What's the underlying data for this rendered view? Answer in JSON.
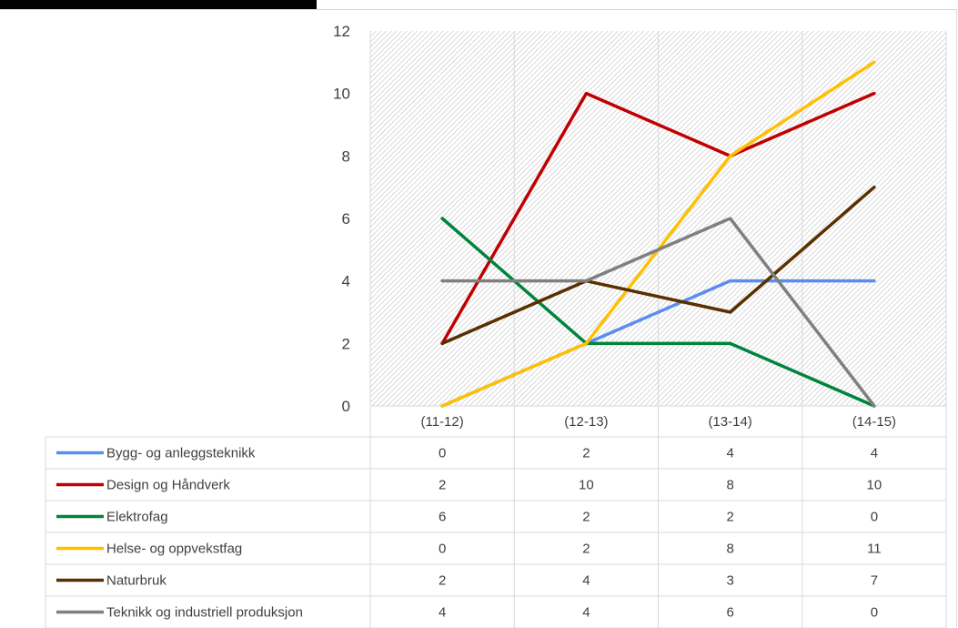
{
  "chart_data": {
    "type": "line",
    "title": "",
    "xlabel": "",
    "ylabel": "",
    "categories": [
      "(11-12)",
      "(12-13)",
      "(13-14)",
      "(14-15)"
    ],
    "ylim": [
      0,
      12
    ],
    "yticks": [
      0,
      2,
      4,
      6,
      8,
      10,
      12
    ],
    "grid": false,
    "plot_background": "diagonal hatch",
    "legend": "data-table",
    "series": [
      {
        "name": "Bygg- og anleggsteknikk",
        "color": "#5b8def",
        "values": [
          0,
          2,
          4,
          4
        ]
      },
      {
        "name": "Design og Håndverk",
        "color": "#c00000",
        "values": [
          2,
          10,
          8,
          10
        ]
      },
      {
        "name": "Elektrofag",
        "color": "#00843d",
        "values": [
          6,
          2,
          2,
          0
        ]
      },
      {
        "name": "Helse- og oppvekstfag",
        "color": "#ffc000",
        "values": [
          0,
          2,
          8,
          11
        ]
      },
      {
        "name": "Naturbruk",
        "color": "#593000",
        "values": [
          2,
          4,
          3,
          7
        ]
      },
      {
        "name": "Teknikk og industriell produksjon",
        "color": "#808080",
        "values": [
          4,
          4,
          6,
          0
        ]
      }
    ]
  }
}
